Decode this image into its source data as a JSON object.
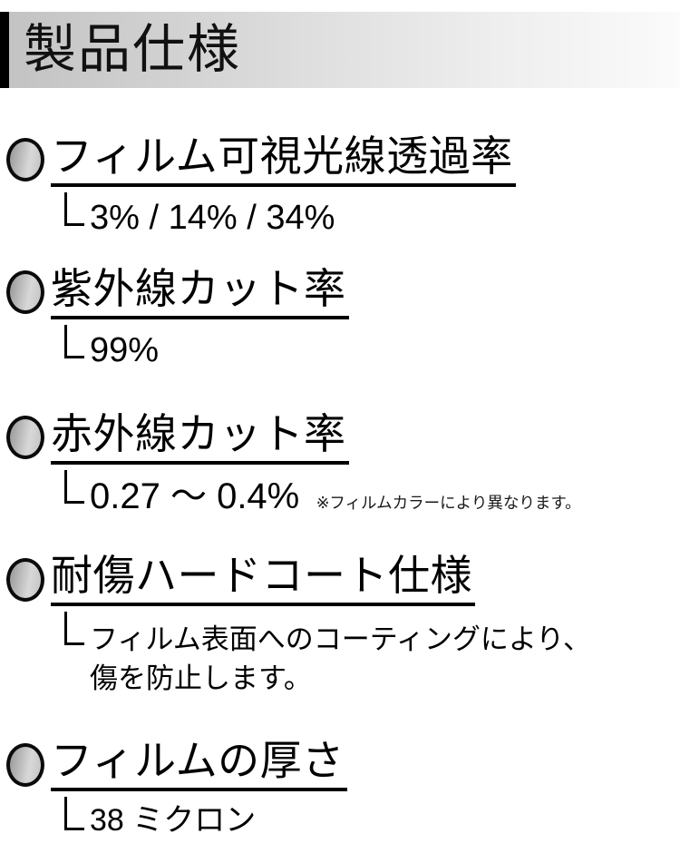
{
  "header": {
    "title": "製品仕様"
  },
  "sections": [
    {
      "title": "フィルム可視光線透過率",
      "value": "3% / 14% / 34%"
    },
    {
      "title": "紫外線カット率",
      "value": "99%"
    },
    {
      "title": "赤外線カット率",
      "value": "0.27 ～ 0.4%",
      "note": "※フィルムカラーにより異なります。"
    },
    {
      "title": "耐傷ハードコート仕様",
      "value": "フィルム表面へのコーティングにより、",
      "value_line2": "傷を防止します。"
    },
    {
      "title": "フィルムの厚さ",
      "value": "38 ミクロン"
    }
  ],
  "icons": {
    "bullet": "gray-gradient-circle",
    "branch": "L-shaped-branch-line"
  },
  "colors": {
    "accent_bar": "#000000",
    "header_gradient_start": "#c2c2c2",
    "header_gradient_end": "#fbfbfb",
    "bullet_dark": "#969696",
    "bullet_light": "#d8d8d8",
    "text": "#000000"
  }
}
